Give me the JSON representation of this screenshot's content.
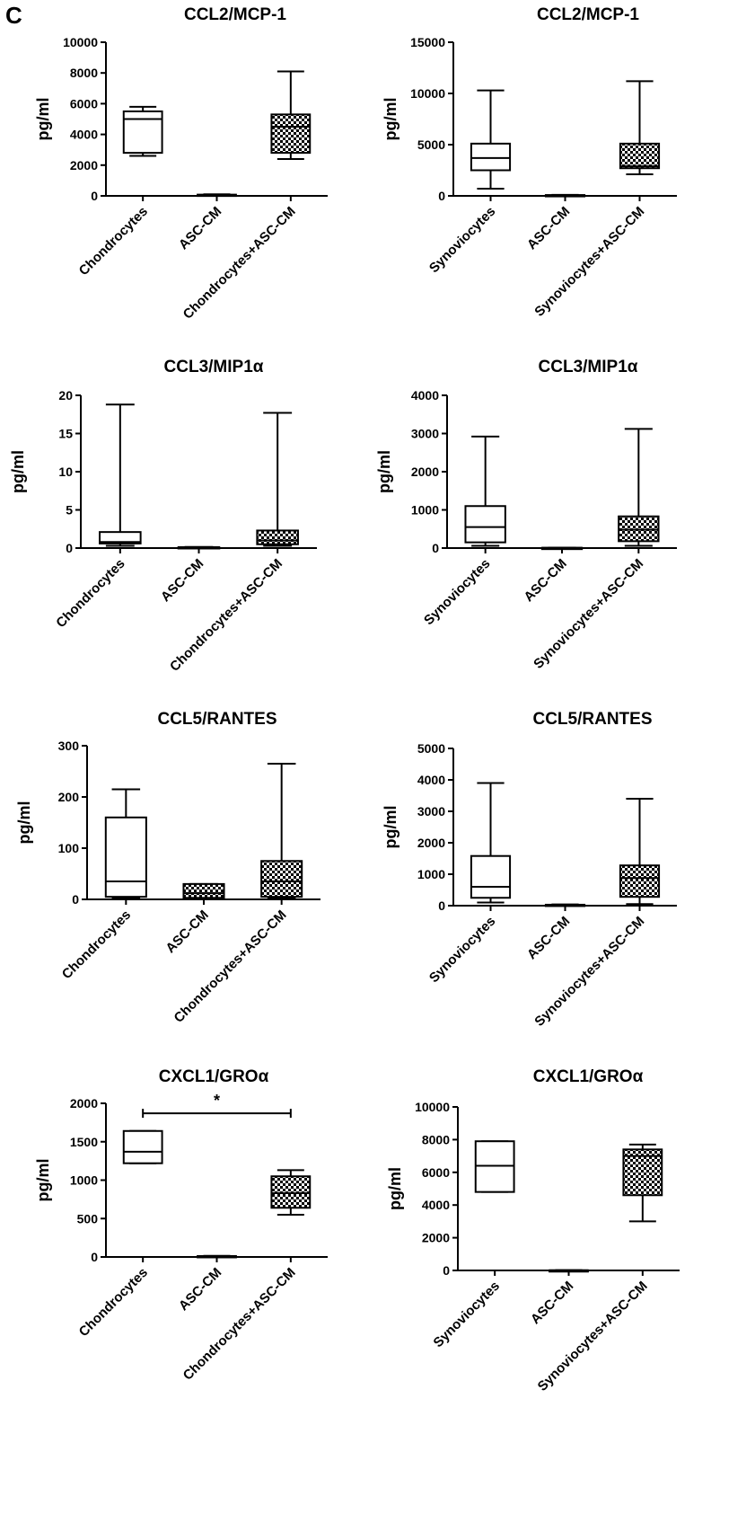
{
  "panel_label": "C",
  "colors": {
    "line": "#000000",
    "box_fill": "#ffffff",
    "pattern_dark": "#000000",
    "pattern_light": "#ffffff"
  },
  "chart_data": [
    {
      "type": "box",
      "title": "CCL2/MCP-1",
      "ylabel": "pg/ml",
      "ylim": [
        0,
        10000
      ],
      "yticks": [
        0,
        2000,
        4000,
        6000,
        8000,
        10000
      ],
      "categories": [
        "Chondrocytes",
        "ASC-CM",
        "Chondrocytes+ASC-CM"
      ],
      "boxes": [
        {
          "min": 2600,
          "q1": 2800,
          "median": 5000,
          "q3": 5500,
          "max": 5800,
          "fill": "white"
        },
        {
          "min": 20,
          "q1": 40,
          "median": 60,
          "q3": 80,
          "max": 100,
          "fill": "white"
        },
        {
          "min": 2400,
          "q1": 2800,
          "median": 4500,
          "q3": 5300,
          "max": 8100,
          "fill": "checker"
        }
      ]
    },
    {
      "type": "box",
      "title": "CCL2/MCP-1",
      "ylabel": "pg/ml",
      "ylim": [
        0,
        15000
      ],
      "yticks": [
        0,
        5000,
        10000,
        15000
      ],
      "categories": [
        "Synoviocytes",
        "ASC-CM",
        "Synoviocytes+ASC-CM"
      ],
      "boxes": [
        {
          "min": 700,
          "q1": 2500,
          "median": 3700,
          "q3": 5100,
          "max": 10300,
          "fill": "white"
        },
        {
          "min": 20,
          "q1": 40,
          "median": 60,
          "q3": 80,
          "max": 100,
          "fill": "white"
        },
        {
          "min": 2100,
          "q1": 2700,
          "median": 2900,
          "q3": 5100,
          "max": 11200,
          "fill": "checker"
        }
      ]
    },
    {
      "type": "box",
      "title": "CCL3/MIP1α",
      "ylabel": "pg/ml",
      "ylim": [
        0,
        20
      ],
      "yticks": [
        0,
        5,
        10,
        15,
        20
      ],
      "categories": [
        "Chondrocytes",
        "ASC-CM",
        "Chondrocytes+ASC-CM"
      ],
      "boxes": [
        {
          "min": 0.3,
          "q1": 0.6,
          "median": 0.8,
          "q3": 2.1,
          "max": 18.8,
          "fill": "white"
        },
        {
          "min": 0.05,
          "q1": 0.08,
          "median": 0.1,
          "q3": 0.12,
          "max": 0.15,
          "fill": "white"
        },
        {
          "min": 0.3,
          "q1": 0.5,
          "median": 1.0,
          "q3": 2.3,
          "max": 17.7,
          "fill": "checker"
        }
      ]
    },
    {
      "type": "box",
      "title": "CCL3/MIP1α",
      "ylabel": "pg/ml",
      "ylim": [
        0,
        4000
      ],
      "yticks": [
        0,
        1000,
        2000,
        3000,
        4000
      ],
      "categories": [
        "Synoviocytes",
        "ASC-CM",
        "Synoviocytes+ASC-CM"
      ],
      "boxes": [
        {
          "min": 60,
          "q1": 150,
          "median": 550,
          "q3": 1100,
          "max": 2920,
          "fill": "white"
        },
        {
          "min": 2,
          "q1": 4,
          "median": 6,
          "q3": 8,
          "max": 10,
          "fill": "white"
        },
        {
          "min": 60,
          "q1": 180,
          "median": 480,
          "q3": 830,
          "max": 3120,
          "fill": "checker"
        }
      ]
    },
    {
      "type": "box",
      "title": "CCL5/RANTES",
      "ylabel": "pg/ml",
      "ylim": [
        0,
        300
      ],
      "yticks": [
        0,
        100,
        200,
        300
      ],
      "categories": [
        "Chondrocytes",
        "ASC-CM",
        "Chondrocytes+ASC-CM"
      ],
      "boxes": [
        {
          "min": 3,
          "q1": 5,
          "median": 35,
          "q3": 160,
          "max": 215,
          "fill": "white"
        },
        {
          "min": 2,
          "q1": 3,
          "median": 12,
          "q3": 30,
          "max": 30,
          "fill": "checker"
        },
        {
          "min": 3,
          "q1": 5,
          "median": 35,
          "q3": 75,
          "max": 265,
          "fill": "checker"
        }
      ]
    },
    {
      "type": "box",
      "title": "CCL5/RANTES",
      "ylabel": "pg/ml",
      "ylim": [
        0,
        5000
      ],
      "yticks": [
        0,
        1000,
        2000,
        3000,
        4000,
        5000
      ],
      "categories": [
        "Synoviocytes",
        "ASC-CM",
        "Synoviocytes+ASC-CM"
      ],
      "boxes": [
        {
          "min": 100,
          "q1": 250,
          "median": 600,
          "q3": 1580,
          "max": 3900,
          "fill": "white"
        },
        {
          "min": 5,
          "q1": 10,
          "median": 20,
          "q3": 30,
          "max": 40,
          "fill": "white"
        },
        {
          "min": 50,
          "q1": 280,
          "median": 880,
          "q3": 1280,
          "max": 3400,
          "fill": "checker"
        }
      ]
    },
    {
      "type": "box",
      "title": "CXCL1/GROα",
      "ylabel": "pg/ml",
      "ylim": [
        0,
        2000
      ],
      "yticks": [
        0,
        500,
        1000,
        1500,
        2000
      ],
      "categories": [
        "Chondrocytes",
        "ASC-CM",
        "Chondrocytes+ASC-CM"
      ],
      "boxes": [
        {
          "min": 1220,
          "q1": 1220,
          "median": 1370,
          "q3": 1640,
          "max": 1640,
          "fill": "white"
        },
        {
          "min": 5,
          "q1": 8,
          "median": 10,
          "q3": 12,
          "max": 15,
          "fill": "white"
        },
        {
          "min": 550,
          "q1": 640,
          "median": 830,
          "q3": 1050,
          "max": 1130,
          "fill": "checker"
        }
      ],
      "significance": {
        "label": "*",
        "from": 0,
        "to": 2,
        "y": 1870
      }
    },
    {
      "type": "box",
      "title": "CXCL1/GROα",
      "ylabel": "pg/ml",
      "ylim": [
        0,
        10000
      ],
      "yticks": [
        0,
        2000,
        4000,
        6000,
        8000,
        10000
      ],
      "categories": [
        "Synoviocytes",
        "ASC-CM",
        "Synoviocytes+ASC-CM"
      ],
      "boxes": [
        {
          "min": 4800,
          "q1": 4800,
          "median": 6400,
          "q3": 7900,
          "max": 7900,
          "fill": "white"
        },
        {
          "min": 5,
          "q1": 8,
          "median": 10,
          "q3": 12,
          "max": 15,
          "fill": "white"
        },
        {
          "min": 3000,
          "q1": 4600,
          "median": 7000,
          "q3": 7400,
          "max": 7700,
          "fill": "checker"
        }
      ]
    }
  ]
}
